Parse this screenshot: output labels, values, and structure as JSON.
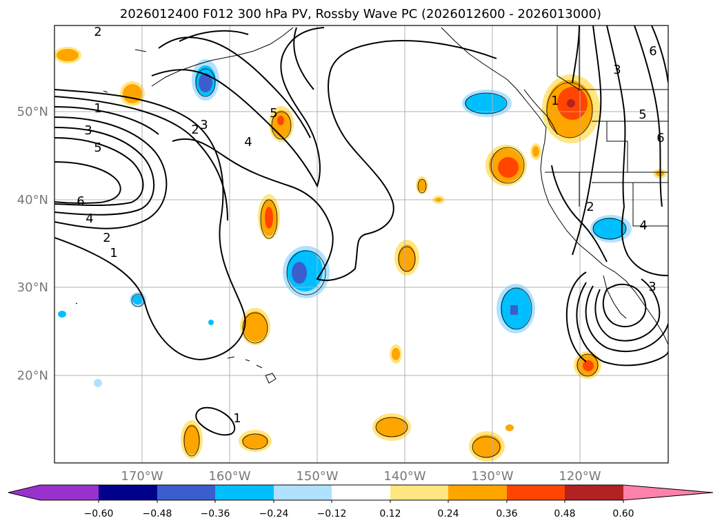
{
  "title": "2026012400 F012 300 hPa PV, Rossby Wave PC (2026012600 - 2026013000)",
  "map": {
    "lon_ticks": [
      "170°W",
      "160°W",
      "150°W",
      "140°W",
      "130°W",
      "120°W"
    ],
    "lat_ticks": [
      "50°N",
      "40°N",
      "30°N",
      "20°N"
    ],
    "contour_labels": [
      {
        "text": "2"
      },
      {
        "text": "1"
      },
      {
        "text": "3"
      },
      {
        "text": "5"
      },
      {
        "text": "2"
      },
      {
        "text": "3"
      },
      {
        "text": "4"
      },
      {
        "text": "5"
      },
      {
        "text": "6"
      },
      {
        "text": "4"
      },
      {
        "text": "2"
      },
      {
        "text": "1"
      },
      {
        "text": "1"
      },
      {
        "text": "1"
      },
      {
        "text": "3"
      },
      {
        "text": "5"
      },
      {
        "text": "6"
      },
      {
        "text": "6"
      },
      {
        "text": "2"
      },
      {
        "text": "4"
      },
      {
        "text": "3"
      }
    ]
  },
  "colorbar": {
    "labels": [
      "−0.60",
      "−0.48",
      "−0.36",
      "−0.24",
      "−0.12",
      "0.12",
      "0.24",
      "0.36",
      "0.48",
      "0.60"
    ],
    "colors": [
      "#9932cc",
      "#00008b",
      "#3a5fcd",
      "#00bfff",
      "#b0e2ff",
      "#ffffff",
      "#ffe680",
      "#ffa500",
      "#ff4500",
      "#b22222",
      "#ff82ab"
    ]
  }
}
